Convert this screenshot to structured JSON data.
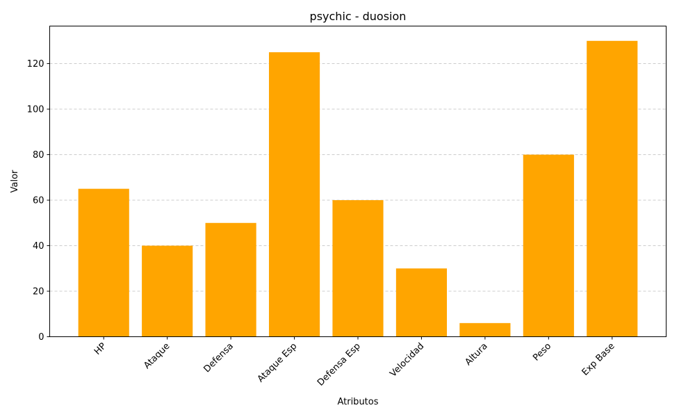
{
  "chart_data": {
    "type": "bar",
    "title": "psychic - duosion",
    "xlabel": "Atributos",
    "ylabel": "Valor",
    "categories": [
      "HP",
      "Ataque",
      "Defensa",
      "Ataque Esp",
      "Defensa Esp",
      "Velocidad",
      "Altura",
      "Peso",
      "Exp Base"
    ],
    "values": [
      65,
      40,
      50,
      125,
      60,
      30,
      6,
      80,
      130
    ],
    "yticks": [
      0,
      20,
      40,
      60,
      80,
      100,
      120
    ],
    "ylim": [
      0,
      136.5
    ],
    "grid": "y-dashed",
    "bar_color": "#ffa500"
  }
}
